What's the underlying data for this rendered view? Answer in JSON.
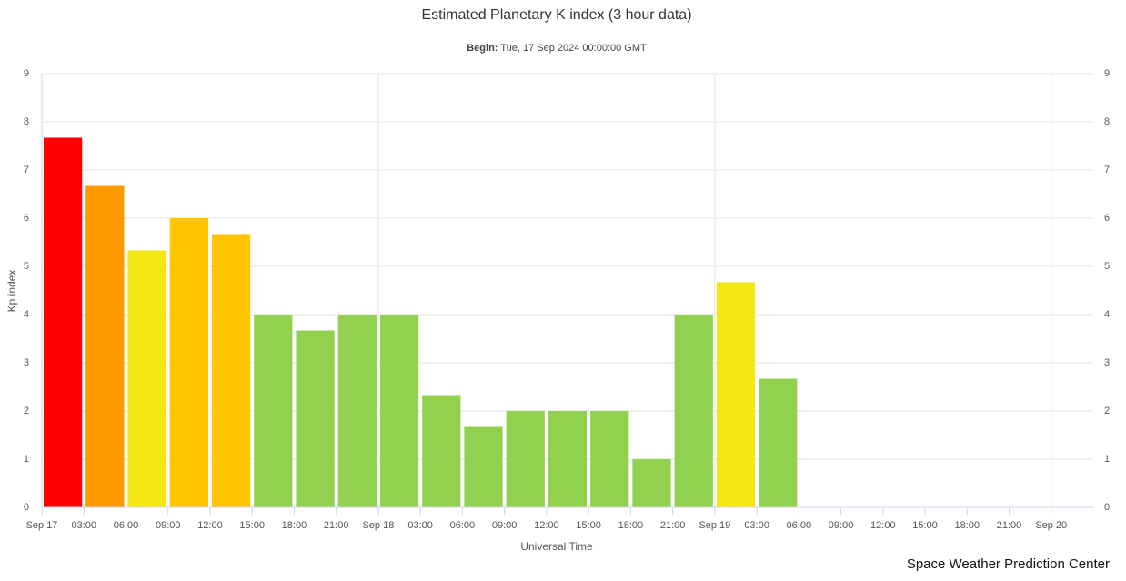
{
  "chart_data": {
    "type": "bar",
    "title": "Estimated Planetary K index (3 hour data)",
    "subtitle_label": "Begin:",
    "subtitle": "Tue, 17 Sep 2024 00:00:00 GMT",
    "x_label": "Universal Time",
    "y_label": "Kp index",
    "credit": "Space Weather Prediction Center",
    "categories": [
      "Sep 17",
      "03:00",
      "06:00",
      "09:00",
      "12:00",
      "15:00",
      "18:00",
      "21:00",
      "Sep 18",
      "03:00",
      "06:00",
      "09:00",
      "12:00",
      "15:00",
      "18:00",
      "21:00",
      "Sep 19",
      "03:00",
      "06:00",
      "09:00",
      "12:00",
      "15:00",
      "18:00",
      "21:00",
      "Sep 20"
    ],
    "values": [
      7.67,
      6.67,
      5.33,
      6.0,
      5.67,
      4.0,
      3.67,
      4.0,
      4.0,
      2.33,
      1.67,
      2.0,
      2.0,
      2.0,
      1.0,
      4.0,
      4.67,
      2.67,
      null,
      null,
      null,
      null,
      null,
      null,
      null
    ],
    "colors": [
      "#ff0000",
      "#ff9900",
      "#f5e616",
      "#ffc600",
      "#ffc600",
      "#92d050",
      "#92d050",
      "#92d050",
      "#92d050",
      "#92d050",
      "#92d050",
      "#92d050",
      "#92d050",
      "#92d050",
      "#92d050",
      "#92d050",
      "#f5e616",
      "#92d050",
      null,
      null,
      null,
      null,
      null,
      null,
      null
    ],
    "ylim": [
      0,
      9
    ],
    "yticks": [
      0,
      1,
      2,
      3,
      4,
      5,
      6,
      7,
      8,
      9
    ],
    "grid": true
  }
}
